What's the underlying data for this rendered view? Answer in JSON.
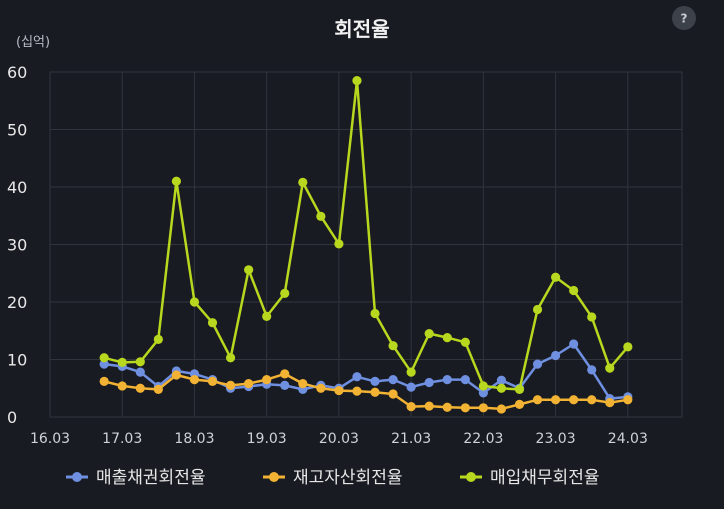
{
  "help_label": "?",
  "chart_data": {
    "type": "line",
    "title": "회전율",
    "unit_label": "(십억)",
    "grid": true,
    "legend_position": "bottom",
    "ylim": [
      0,
      60
    ],
    "yticks": [
      0,
      10,
      20,
      30,
      40,
      50,
      60
    ],
    "xlim": [
      "2016-03",
      "2024-12"
    ],
    "xticks": [
      {
        "date": "2016-03",
        "label": "16.03"
      },
      {
        "date": "2017-03",
        "label": "17.03"
      },
      {
        "date": "2018-03",
        "label": "18.03"
      },
      {
        "date": "2019-03",
        "label": "19.03"
      },
      {
        "date": "2020-03",
        "label": "20.03"
      },
      {
        "date": "2021-03",
        "label": "21.03"
      },
      {
        "date": "2022-03",
        "label": "22.03"
      },
      {
        "date": "2023-03",
        "label": "23.03"
      },
      {
        "date": "2024-03",
        "label": "24.03"
      }
    ],
    "x": [
      "2016-12",
      "2017-03",
      "2017-06",
      "2017-09",
      "2017-12",
      "2018-03",
      "2018-06",
      "2018-09",
      "2018-12",
      "2019-03",
      "2019-06",
      "2019-09",
      "2019-12",
      "2020-03",
      "2020-06",
      "2020-09",
      "2020-12",
      "2021-03",
      "2021-06",
      "2021-09",
      "2021-12",
      "2022-03",
      "2022-06",
      "2022-09",
      "2022-12",
      "2023-03",
      "2023-06",
      "2023-09",
      "2023-12",
      "2024-03"
    ],
    "series": [
      {
        "name": "매출채권회전율",
        "color": "#6f8fe0",
        "values": [
          9.2,
          8.8,
          7.8,
          5.3,
          8.0,
          7.5,
          6.5,
          5.0,
          5.3,
          5.7,
          5.5,
          4.8,
          5.5,
          5.0,
          7.0,
          6.2,
          6.5,
          5.2,
          6.0,
          6.5,
          6.5,
          4.2,
          6.4,
          5.0,
          9.2,
          10.7,
          12.7,
          8.2,
          3.2,
          3.5
        ]
      },
      {
        "name": "재고자산회전율",
        "color": "#f2b233",
        "values": [
          6.2,
          5.4,
          5.0,
          4.8,
          7.3,
          6.5,
          6.2,
          5.5,
          5.8,
          6.5,
          7.5,
          5.8,
          5.0,
          4.6,
          4.5,
          4.3,
          4.0,
          1.8,
          1.9,
          1.7,
          1.6,
          1.6,
          1.4,
          2.2,
          3.0,
          3.0,
          3.0,
          3.0,
          2.5,
          3.0
        ]
      },
      {
        "name": "매입채무회전율",
        "color": "#b7d81e",
        "values": [
          10.3,
          9.5,
          9.6,
          13.5,
          41.0,
          20.0,
          16.4,
          10.3,
          25.6,
          17.5,
          21.5,
          40.8,
          34.9,
          30.1,
          58.5,
          18.0,
          12.4,
          7.8,
          14.5,
          13.8,
          13.0,
          5.4,
          5.0,
          4.8,
          18.7,
          24.3,
          22.0,
          17.4,
          8.5,
          12.2
        ]
      }
    ]
  }
}
